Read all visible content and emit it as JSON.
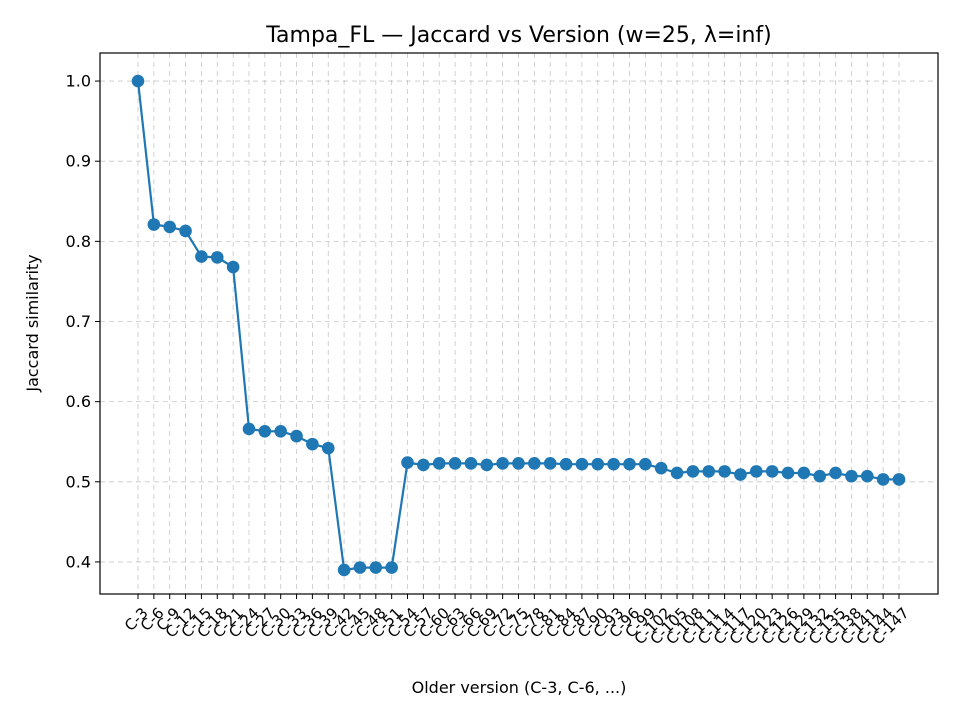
{
  "chart_data": {
    "type": "line",
    "title": "Tampa_FL — Jaccard vs Version (w=25, λ=inf)",
    "xlabel": "Older version (C-3, C-6, ...)",
    "ylabel": "Jaccard similarity",
    "ylim": [
      0.36,
      1.035
    ],
    "yticks": [
      "0.4",
      "0.5",
      "0.6",
      "0.7",
      "0.8",
      "0.9",
      "1.0"
    ],
    "grid": true,
    "color": "#1f77b4",
    "categories": [
      "C-3",
      "C-6",
      "C-9",
      "C-12",
      "C-15",
      "C-18",
      "C-21",
      "C-24",
      "C-27",
      "C-30",
      "C-33",
      "C-36",
      "C-39",
      "C-42",
      "C-45",
      "C-48",
      "C-51",
      "C-54",
      "C-57",
      "C-60",
      "C-63",
      "C-66",
      "C-69",
      "C-72",
      "C-75",
      "C-78",
      "C-81",
      "C-84",
      "C-87",
      "C-90",
      "C-93",
      "C-96",
      "C-99",
      "C-102",
      "C-105",
      "C-108",
      "C-111",
      "C-114",
      "C-117",
      "C-120",
      "C-123",
      "C-126",
      "C-129",
      "C-132",
      "C-135",
      "C-138",
      "C-141",
      "C-144",
      "C-147"
    ],
    "series": [
      {
        "values": [
          1.0,
          0.821,
          0.818,
          0.813,
          0.781,
          0.78,
          0.768,
          0.566,
          0.563,
          0.563,
          0.557,
          0.547,
          0.542,
          0.39,
          0.393,
          0.393,
          0.393,
          0.524,
          0.521,
          0.523,
          0.523,
          0.523,
          0.521,
          0.523,
          0.523,
          0.523,
          0.523,
          0.522,
          0.522,
          0.522,
          0.522,
          0.522,
          0.522,
          0.517,
          0.511,
          0.513,
          0.513,
          0.513,
          0.509,
          0.513,
          0.513,
          0.511,
          0.511,
          0.507,
          0.511,
          0.507,
          0.507,
          0.503,
          0.503
        ]
      }
    ]
  }
}
